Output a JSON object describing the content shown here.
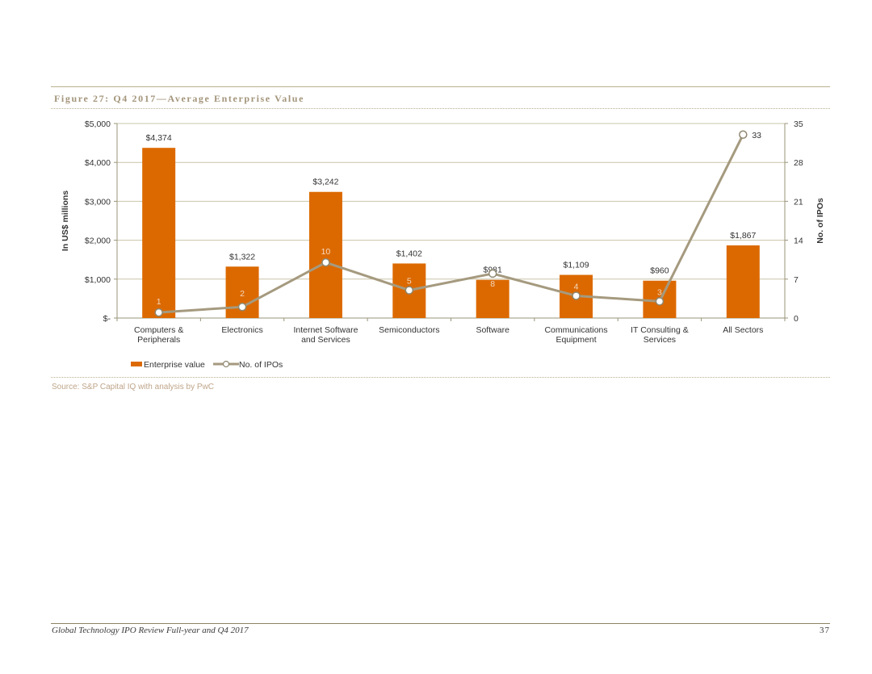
{
  "figure": {
    "title": "Figure 27: Q4 2017—Average Enterprise Value"
  },
  "chart_data": {
    "type": "bar",
    "categories": [
      [
        "Computers &",
        "Peripherals"
      ],
      [
        "Electronics"
      ],
      [
        "Internet Software",
        "and Services"
      ],
      [
        "Semiconductors"
      ],
      [
        "Software"
      ],
      [
        "Communications",
        "Equipment"
      ],
      [
        "IT Consulting &",
        "Services"
      ],
      [
        "All Sectors"
      ]
    ],
    "series": [
      {
        "name": "Enterprise value",
        "type": "bar",
        "axis": "left",
        "color": "#dc6900",
        "values": [
          4374,
          1322,
          3242,
          1402,
          981,
          1109,
          960,
          1867
        ],
        "labels": [
          "$4,374",
          "$1,322",
          "$3,242",
          "$1,402",
          "$981",
          "$1,109",
          "$960",
          "$1,867"
        ]
      },
      {
        "name": "No. of IPOs",
        "type": "line",
        "axis": "right",
        "color": "#a59a7f",
        "values": [
          1,
          2,
          10,
          5,
          8,
          4,
          3,
          33
        ],
        "labels": [
          "1",
          "2",
          "10",
          "5",
          "8",
          "4",
          "3",
          "33"
        ]
      }
    ],
    "ylabel": "In US$ millions",
    "y2label": "No. of IPOs",
    "ylim": [
      0,
      5000
    ],
    "y2lim": [
      0,
      35
    ],
    "yticks": [
      0,
      1000,
      2000,
      3000,
      4000,
      5000
    ],
    "ytick_labels": [
      "$-",
      "$1,000",
      "$2,000",
      "$3,000",
      "$4,000",
      "$5,000"
    ],
    "y2ticks": [
      0,
      7,
      14,
      21,
      28,
      35
    ],
    "y2tick_labels": [
      "0",
      "7",
      "14",
      "21",
      "28",
      "35"
    ],
    "grid": true,
    "legend": "bottom-left"
  },
  "source": "Source: S&P Capital IQ with analysis by PwC",
  "footer": {
    "title": "Global Technology IPO Review Full-year and Q4 2017",
    "page": "37"
  }
}
